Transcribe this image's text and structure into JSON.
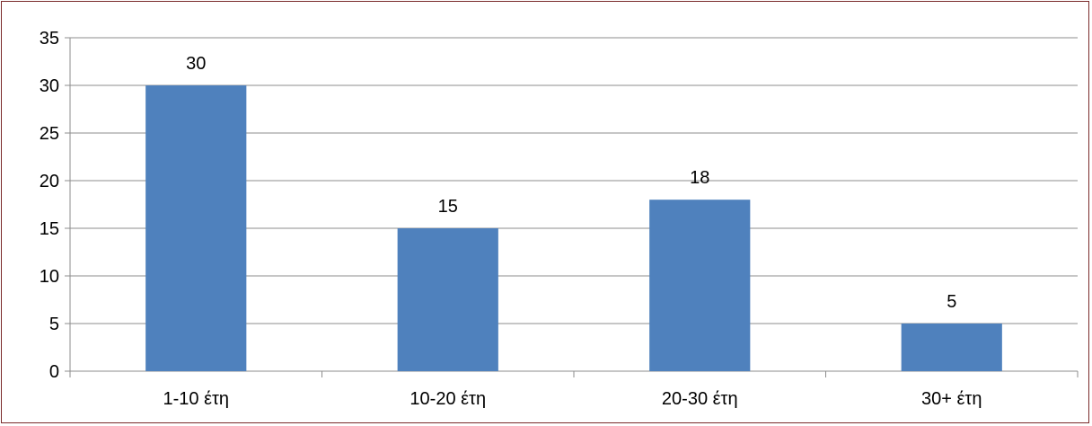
{
  "chart_data": {
    "type": "bar",
    "categories": [
      "1-10 έτη",
      "10-20 έτη",
      "20-30 έτη",
      "30+ έτη"
    ],
    "values": [
      30,
      15,
      18,
      5
    ],
    "ylim": [
      0,
      35
    ],
    "yticks": [
      0,
      5,
      10,
      15,
      20,
      25,
      30,
      35
    ],
    "title": "",
    "xlabel": "",
    "ylabel": "",
    "grid": true,
    "legend": "none",
    "bar_color": "#4f81bd",
    "grid_color": "#8c8c8c"
  }
}
